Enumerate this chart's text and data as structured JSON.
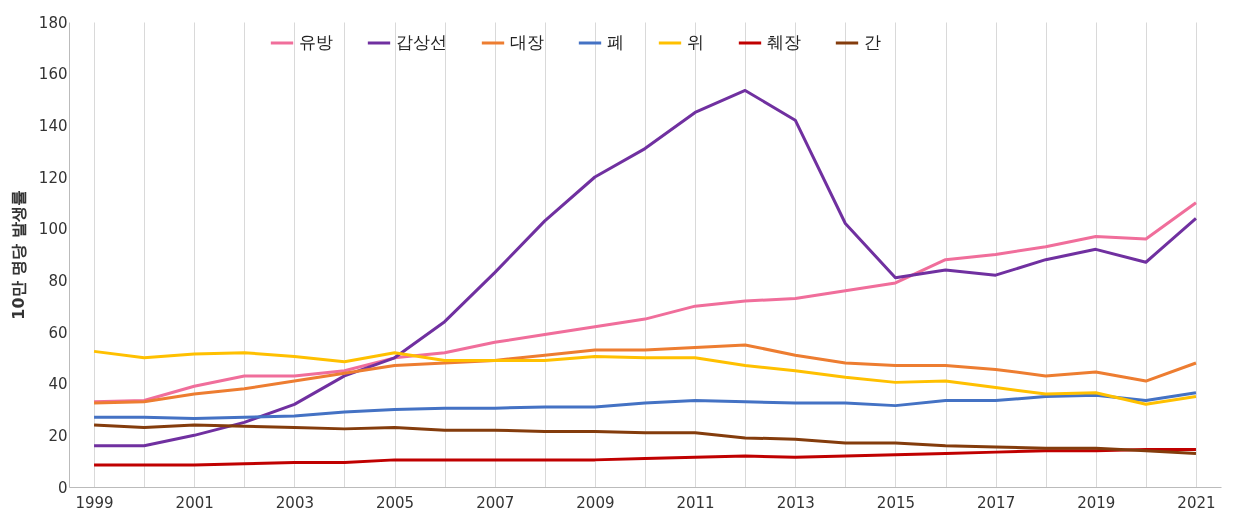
{
  "chart_data": {
    "type": "line",
    "ylabel": "10만 명당 발생률",
    "categories": [
      "1999",
      null,
      "2001",
      null,
      "2003",
      null,
      "2005",
      null,
      "2007",
      null,
      "2009",
      null,
      "2011",
      null,
      "2013",
      null,
      "2015",
      null,
      "2017",
      null,
      "2019",
      null,
      "2021"
    ],
    "ylim": [
      0,
      180
    ],
    "yticks": [
      0,
      20,
      40,
      60,
      80,
      100,
      120,
      140,
      160,
      180
    ],
    "grid": "x",
    "legend": "top",
    "line_style": "solid",
    "marker": "none",
    "series": [
      {
        "name": "유방",
        "color": "#f06e9b",
        "values": [
          33,
          33.5,
          39,
          43,
          43,
          45,
          50,
          52,
          56,
          59,
          62,
          65,
          70,
          72,
          73,
          76,
          79,
          88,
          90,
          93,
          97,
          96,
          110
        ]
      },
      {
        "name": "갑상선",
        "color": "#7030a0",
        "values": [
          16,
          16,
          20,
          25,
          32,
          43,
          50,
          64,
          83,
          103,
          120,
          131,
          145,
          153.5,
          142,
          102,
          81,
          84,
          82,
          88,
          92,
          87,
          104
        ]
      },
      {
        "name": "대장",
        "color": "#ed7d31",
        "values": [
          32.5,
          33,
          36,
          38,
          41,
          44,
          47,
          48,
          49,
          51,
          53,
          53,
          54,
          55,
          51,
          48,
          47,
          47,
          45.5,
          43,
          44.5,
          41,
          48
        ]
      },
      {
        "name": "폐",
        "color": "#4472c4",
        "values": [
          27,
          27,
          26.5,
          27,
          27.5,
          29,
          30,
          30.5,
          30.5,
          31,
          31,
          32.5,
          33.5,
          33,
          32.5,
          32.5,
          31.5,
          33.5,
          33.5,
          35,
          35.5,
          33.5,
          36.5
        ]
      },
      {
        "name": "위",
        "color": "#ffc000",
        "values": [
          52.5,
          50,
          51.5,
          52,
          50.5,
          48.5,
          52,
          49,
          49,
          49,
          50.5,
          50,
          50,
          47,
          45,
          42.5,
          40.5,
          41,
          38.5,
          36,
          36.5,
          32,
          35
        ]
      },
      {
        "name": "췌장",
        "color": "#c00000",
        "values": [
          8.5,
          8.5,
          8.5,
          9,
          9.5,
          9.5,
          10.5,
          10.5,
          10.5,
          10.5,
          10.5,
          11,
          11.5,
          12,
          11.5,
          12,
          12.5,
          13,
          13.5,
          14,
          14,
          14.5,
          14.5
        ]
      },
      {
        "name": "간",
        "color": "#843c0c",
        "values": [
          24,
          23,
          24,
          23.5,
          23,
          22.5,
          23,
          22,
          22,
          21.5,
          21.5,
          21,
          21,
          19,
          18.5,
          17,
          17,
          16,
          15.5,
          15,
          15,
          14,
          13
        ]
      }
    ]
  }
}
